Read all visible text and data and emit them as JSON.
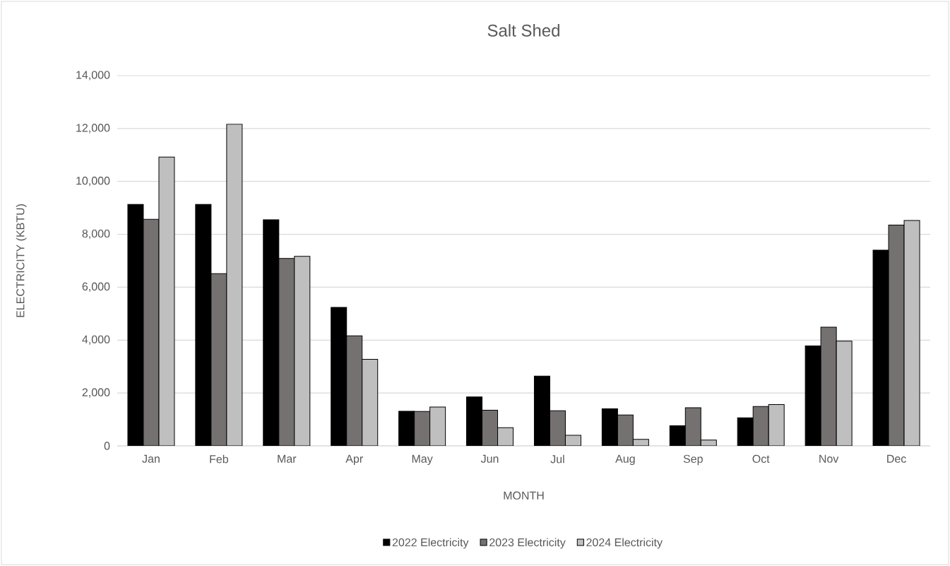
{
  "chart_data": {
    "type": "bar",
    "title": "Salt Shed",
    "xlabel": "MONTH",
    "ylabel": "ELECTRICITY (KBTU)",
    "categories": [
      "Jan",
      "Feb",
      "Mar",
      "Apr",
      "May",
      "Jun",
      "Jul",
      "Aug",
      "Sep",
      "Oct",
      "Nov",
      "Dec"
    ],
    "series": [
      {
        "name": "2022 Electricity",
        "color": "#000000",
        "values": [
          9130,
          9130,
          8550,
          5240,
          1310,
          1850,
          2640,
          1400,
          760,
          1060,
          3780,
          7400
        ]
      },
      {
        "name": "2023 Electricity",
        "color": "#767171",
        "values": [
          8570,
          6510,
          7090,
          4160,
          1300,
          1350,
          1330,
          1170,
          1440,
          1490,
          4490,
          8350
        ]
      },
      {
        "name": "2024 Electricity",
        "color": "#bfbfbf",
        "values": [
          10920,
          12160,
          7170,
          3270,
          1470,
          690,
          400,
          250,
          220,
          1560,
          3960,
          8520
        ]
      }
    ],
    "ylim": [
      0,
      14000
    ],
    "yticks": [
      {
        "value": 0,
        "label": "0"
      },
      {
        "value": 2000,
        "label": "2,000"
      },
      {
        "value": 4000,
        "label": "4,000"
      },
      {
        "value": 6000,
        "label": "6,000"
      },
      {
        "value": 8000,
        "label": "8,000"
      },
      {
        "value": 10000,
        "label": "10,000"
      },
      {
        "value": 12000,
        "label": "12,000"
      },
      {
        "value": 14000,
        "label": "14,000"
      }
    ],
    "grid": "y",
    "legend": "bottom"
  }
}
